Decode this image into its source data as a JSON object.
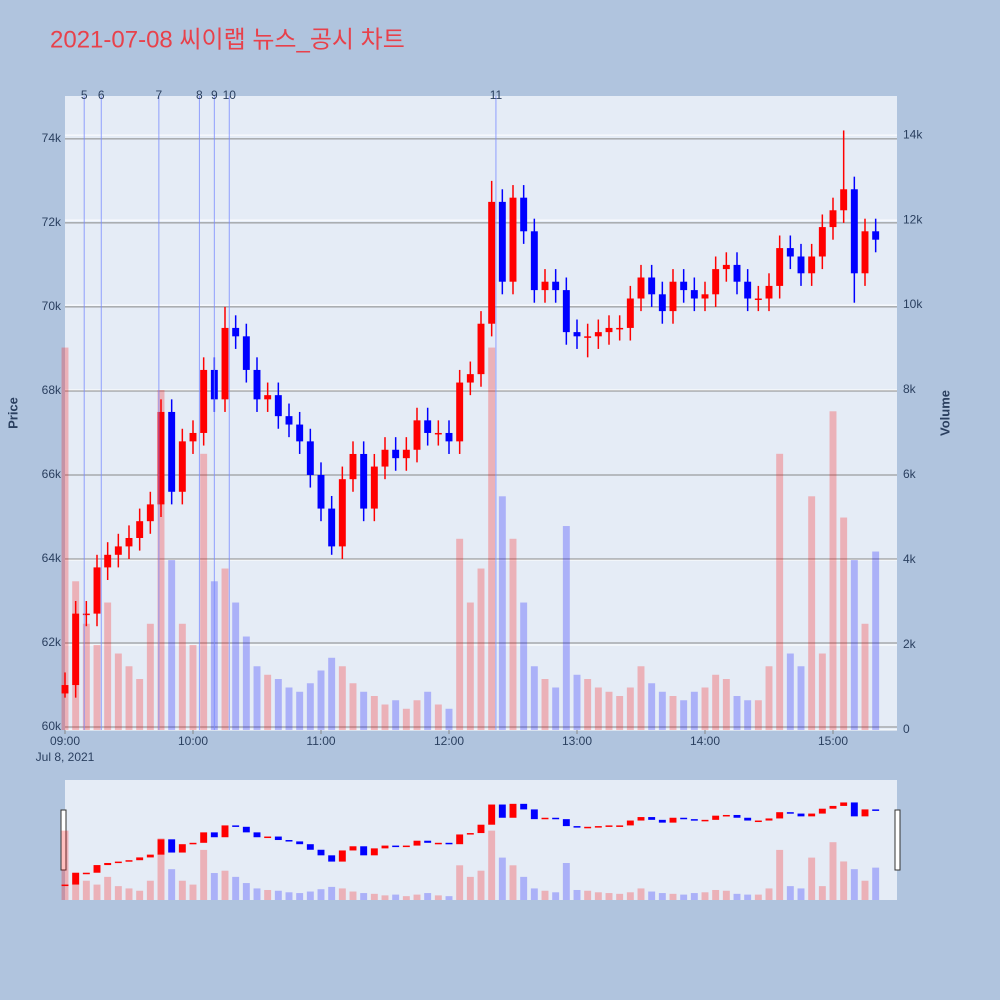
{
  "chart_data": {
    "type": "candlestick",
    "title": "2021-07-08 씨이랩 뉴스_공시 차트",
    "y_title": "Price",
    "y2_title": "Volume",
    "x_date": "Jul 8, 2021",
    "x": [
      "09:00",
      "09:05",
      "09:10",
      "09:15",
      "09:20",
      "09:25",
      "09:30",
      "09:35",
      "09:40",
      "09:45",
      "09:50",
      "09:55",
      "10:00",
      "10:05",
      "10:10",
      "10:15",
      "10:20",
      "10:25",
      "10:30",
      "10:35",
      "10:40",
      "10:45",
      "10:50",
      "10:55",
      "11:00",
      "11:05",
      "11:10",
      "11:15",
      "11:20",
      "11:25",
      "11:30",
      "11:35",
      "11:40",
      "11:45",
      "11:50",
      "11:55",
      "12:00",
      "12:05",
      "12:10",
      "12:15",
      "12:20",
      "12:25",
      "12:30",
      "12:35",
      "12:40",
      "12:45",
      "12:50",
      "12:55",
      "13:00",
      "13:05",
      "13:10",
      "13:15",
      "13:20",
      "13:25",
      "13:30",
      "13:35",
      "13:40",
      "13:45",
      "13:50",
      "13:55",
      "14:00",
      "14:05",
      "14:10",
      "14:15",
      "14:20",
      "14:25",
      "14:30",
      "14:35",
      "14:40",
      "14:45",
      "14:50",
      "14:55",
      "15:00",
      "15:05",
      "15:10",
      "15:15",
      "15:20"
    ],
    "open": [
      60800,
      61000,
      62700,
      62700,
      63800,
      64100,
      64300,
      64500,
      64900,
      65300,
      67500,
      65600,
      66800,
      67000,
      68500,
      67800,
      69500,
      69300,
      68500,
      67800,
      67900,
      67400,
      67200,
      66800,
      66000,
      65200,
      64300,
      65900,
      66500,
      65200,
      66200,
      66600,
      66400,
      66600,
      67300,
      67000,
      67000,
      66800,
      68200,
      68400,
      69600,
      72500,
      70600,
      72600,
      71800,
      70400,
      70600,
      70400,
      69400,
      69300,
      69300,
      69400,
      69500,
      69500,
      70200,
      70700,
      70300,
      69900,
      70600,
      70400,
      70200,
      70300,
      70900,
      71000,
      70600,
      70200,
      70200,
      70500,
      71400,
      71200,
      70800,
      71200,
      71900,
      72300,
      72800,
      70800,
      71800
    ],
    "high": [
      61300,
      63000,
      63000,
      64100,
      64400,
      64600,
      64800,
      65200,
      65600,
      67800,
      67800,
      67100,
      67300,
      68800,
      68800,
      70000,
      69800,
      69600,
      68800,
      68200,
      68200,
      67700,
      67500,
      67100,
      66300,
      65500,
      66200,
      66800,
      66800,
      66500,
      66900,
      66900,
      66900,
      67600,
      67600,
      67300,
      67300,
      68500,
      68700,
      69900,
      73000,
      72800,
      72900,
      72900,
      72100,
      70900,
      70900,
      70700,
      69700,
      69600,
      69700,
      69800,
      69800,
      70500,
      71000,
      71000,
      70600,
      70900,
      70900,
      70700,
      70600,
      71200,
      71300,
      71300,
      70900,
      70500,
      70800,
      71700,
      71700,
      71500,
      71500,
      72200,
      72600,
      74200,
      73100,
      72100,
      72100
    ],
    "low": [
      60700,
      60700,
      62400,
      62400,
      63500,
      63800,
      64000,
      64200,
      64600,
      65000,
      65300,
      65300,
      66500,
      66700,
      67500,
      67500,
      69000,
      68200,
      67500,
      67500,
      67100,
      66900,
      66500,
      65700,
      64900,
      64100,
      64000,
      65600,
      64900,
      64900,
      65900,
      66100,
      66100,
      66300,
      66700,
      66700,
      66500,
      66500,
      67900,
      68100,
      69300,
      70300,
      70300,
      71500,
      70100,
      70100,
      70100,
      69100,
      69000,
      68800,
      69000,
      69100,
      69200,
      69200,
      69900,
      70000,
      69600,
      69600,
      70100,
      69900,
      69900,
      70000,
      70600,
      70300,
      69900,
      69900,
      69900,
      70200,
      70900,
      70500,
      70500,
      70900,
      71600,
      72000,
      70100,
      70500,
      71300
    ],
    "close": [
      61000,
      62700,
      62700,
      63800,
      64100,
      64300,
      64500,
      64900,
      65300,
      67500,
      65600,
      66800,
      67000,
      68500,
      67800,
      69500,
      69300,
      68500,
      67800,
      67900,
      67400,
      67200,
      66800,
      66000,
      65200,
      64300,
      65900,
      66500,
      65200,
      66200,
      66600,
      66400,
      66600,
      67300,
      67000,
      67000,
      66800,
      68200,
      68400,
      69600,
      72500,
      70600,
      72600,
      71800,
      70400,
      70600,
      70400,
      69400,
      69300,
      69300,
      69400,
      69500,
      69500,
      70200,
      70700,
      70300,
      69900,
      70600,
      70400,
      70200,
      70300,
      70900,
      71000,
      70600,
      70200,
      70200,
      70500,
      71400,
      71200,
      70800,
      71200,
      71900,
      72300,
      72800,
      70800,
      71800,
      71600
    ],
    "volume": [
      9000,
      3500,
      2500,
      2000,
      3000,
      1800,
      1500,
      1200,
      2500,
      8000,
      4000,
      2500,
      2000,
      6500,
      3500,
      3800,
      3000,
      2200,
      1500,
      1300,
      1200,
      1000,
      900,
      1100,
      1400,
      1700,
      1500,
      1100,
      900,
      800,
      600,
      700,
      500,
      700,
      900,
      600,
      500,
      4500,
      3000,
      3800,
      9000,
      5500,
      4500,
      3000,
      1500,
      1200,
      1000,
      4800,
      1300,
      1200,
      1000,
      900,
      800,
      1000,
      1500,
      1100,
      900,
      800,
      700,
      900,
      1000,
      1300,
      1200,
      800,
      700,
      700,
      1500,
      6500,
      1800,
      1500,
      5500,
      1800,
      7500,
      5000,
      4000,
      2500,
      4200
    ],
    "up_color": "#ff0000",
    "down_color": "#0000ff",
    "news": [
      {
        "label": "5",
        "x": "09:09"
      },
      {
        "label": "6",
        "x": "09:17"
      },
      {
        "label": "7",
        "x": "09:44"
      },
      {
        "label": "8",
        "x": "10:03"
      },
      {
        "label": "9",
        "x": "10:10"
      },
      {
        "label": "10",
        "x": "10:17"
      },
      {
        "label": "11",
        "x": "12:22"
      }
    ],
    "xlim": [
      "09:00",
      "15:30"
    ],
    "xticks": [
      "09:00",
      "10:00",
      "11:00",
      "12:00",
      "13:00",
      "14:00",
      "15:00"
    ],
    "ylim": [
      59930,
      75020
    ],
    "yticks": [
      {
        "value": 60000,
        "label": "60k"
      },
      {
        "value": 62000,
        "label": "62k"
      },
      {
        "value": 64000,
        "label": "64k"
      },
      {
        "value": 66000,
        "label": "66k"
      },
      {
        "value": 68000,
        "label": "68k"
      },
      {
        "value": 70000,
        "label": "70k"
      },
      {
        "value": 72000,
        "label": "72k"
      },
      {
        "value": 74000,
        "label": "74k"
      }
    ],
    "y2lim": [
      0,
      14920
    ],
    "y2ticks": [
      0,
      {
        "value": 2000,
        "label": "2k"
      },
      {
        "value": 4000,
        "label": "4k"
      },
      {
        "value": 6000,
        "label": "6k"
      },
      {
        "value": 8000,
        "label": "8k"
      },
      {
        "value": 10000,
        "label": "10k"
      },
      {
        "value": 12000,
        "label": "12k"
      },
      {
        "value": 14000,
        "label": "14k"
      }
    ],
    "grid": true
  }
}
